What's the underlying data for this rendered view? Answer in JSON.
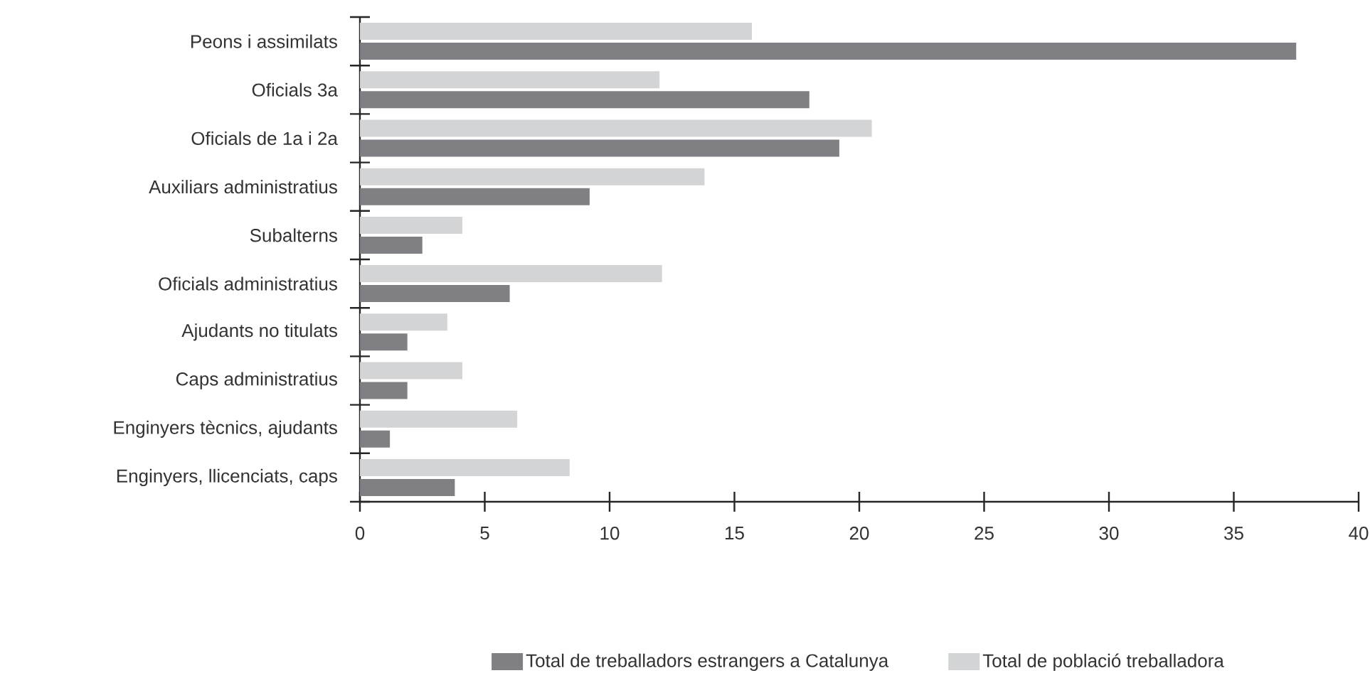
{
  "chart_data": {
    "type": "bar",
    "orientation": "horizontal",
    "categories": [
      "Peons i assimilats",
      "Oficials 3a",
      "Oficials de 1a i 2a",
      "Auxiliars administratius",
      "Subalterns",
      "Oficials administratius",
      "Ajudants no titulats",
      "Caps administratius",
      "Enginyers tècnics, ajudants",
      "Enginyers, llicenciats, caps"
    ],
    "series": [
      {
        "name": "Total de treballadors estrangers a Catalunya",
        "color": "#808084",
        "values": [
          37.5,
          18.0,
          19.2,
          9.2,
          2.5,
          6.0,
          1.9,
          1.9,
          1.2,
          3.8
        ]
      },
      {
        "name": "Total de població treballadora",
        "color": "#d3d4d6",
        "values": [
          15.7,
          12.0,
          20.5,
          13.8,
          4.1,
          12.1,
          3.5,
          4.1,
          6.3,
          8.4
        ]
      }
    ],
    "xlim": [
      0,
      40
    ],
    "xticks": [
      0,
      5,
      10,
      15,
      20,
      25,
      30,
      35,
      40
    ],
    "legend": "bottom"
  }
}
